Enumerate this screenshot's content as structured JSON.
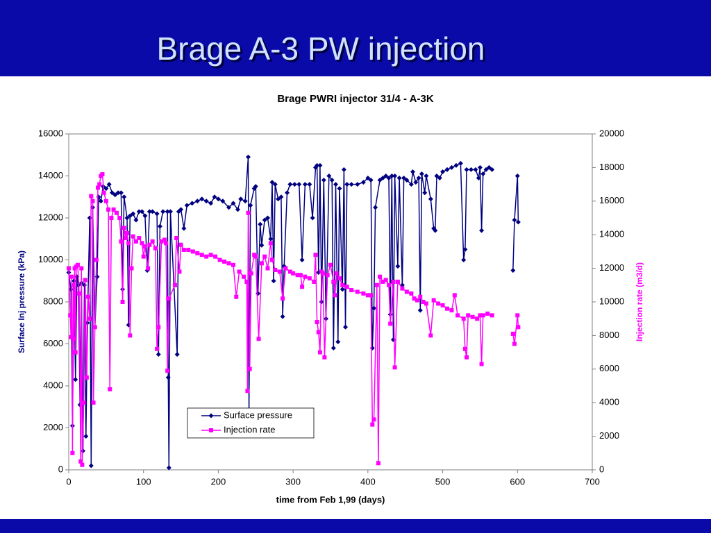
{
  "slide": {
    "title": "Brage A-3 PW injection"
  },
  "chart_data": {
    "type": "line",
    "title": "Brage PWRI injector 31/4 - A-3K",
    "xlabel": "time from Feb 1,99 (days)",
    "ylabel": "Surface Inj pressure (kPa)",
    "y2label": "Injection rate (m3/d)",
    "xlim": [
      0,
      700
    ],
    "xticks": [
      0,
      100,
      200,
      300,
      400,
      500,
      600,
      700
    ],
    "ylim": [
      0,
      16000
    ],
    "yticks": [
      0,
      2000,
      4000,
      6000,
      8000,
      10000,
      12000,
      14000,
      16000
    ],
    "y2lim": [
      0,
      20000
    ],
    "y2ticks": [
      0,
      2000,
      4000,
      6000,
      8000,
      10000,
      12000,
      14000,
      16000,
      18000,
      20000
    ],
    "grid": false,
    "legend": "bottom-left",
    "series": [
      {
        "name": "Surface pressure",
        "color": "#000080",
        "marker": "diamond",
        "axis": "y",
        "x": [
          0,
          3,
          5,
          7,
          9,
          11,
          13,
          15,
          17,
          19,
          21,
          23,
          25,
          28,
          30,
          32,
          35,
          38,
          40,
          43,
          46,
          50,
          54,
          58,
          62,
          66,
          70,
          72,
          74,
          78,
          80,
          82,
          86,
          90,
          94,
          98,
          102,
          105,
          108,
          112,
          118,
          120,
          122,
          126,
          132,
          133,
          134,
          136,
          145,
          147,
          150,
          154,
          158,
          165,
          172,
          178,
          184,
          190,
          195,
          200,
          206,
          214,
          220,
          226,
          230,
          236,
          240,
          241,
          243,
          248,
          250,
          253,
          256,
          258,
          262,
          266,
          270,
          272,
          274,
          276,
          280,
          284,
          286,
          288,
          292,
          296,
          302,
          308,
          312,
          316,
          322,
          326,
          330,
          332,
          334,
          336,
          338,
          341,
          344,
          348,
          352,
          354,
          357,
          360,
          362,
          366,
          368,
          370,
          372,
          378,
          386,
          394,
          400,
          404,
          406,
          408,
          410,
          416,
          420,
          424,
          428,
          430,
          432,
          434,
          436,
          440,
          442,
          446,
          448,
          452,
          458,
          460,
          464,
          468,
          470,
          472,
          476,
          478,
          484,
          488,
          490,
          492,
          496,
          500,
          506,
          512,
          518,
          524,
          528,
          530,
          532,
          538,
          544,
          548,
          550,
          552,
          554,
          558,
          562,
          566,
          580,
          594,
          596,
          600,
          601
        ],
        "values": [
          9400,
          8600,
          2100,
          9000,
          4300,
          9200,
          8800,
          3100,
          8900,
          900,
          8800,
          1600,
          7000,
          12000,
          200,
          12500,
          6800,
          9200,
          13000,
          12800,
          13500,
          13400,
          13600,
          13200,
          13100,
          13200,
          13200,
          8600,
          13000,
          12000,
          6900,
          12100,
          12200,
          11900,
          12300,
          12300,
          12100,
          9500,
          12300,
          12300,
          12200,
          5500,
          11600,
          12300,
          12300,
          4400,
          100,
          12300,
          5500,
          12300,
          12400,
          11500,
          12600,
          12700,
          12800,
          12900,
          12800,
          12700,
          13000,
          12900,
          12800,
          12500,
          12700,
          12400,
          12900,
          12800,
          14900,
          2800,
          12600,
          13400,
          13500,
          8400,
          11700,
          10700,
          11900,
          12000,
          11000,
          13700,
          9000,
          13600,
          12900,
          13000,
          7300,
          9700,
          13200,
          13600,
          13600,
          13600,
          10000,
          13600,
          13600,
          12000,
          14400,
          14500,
          9400,
          14500,
          8000,
          13800,
          7200,
          14000,
          13800,
          5800,
          13600,
          6100,
          13400,
          8600,
          14300,
          6800,
          13600,
          13600,
          13600,
          13700,
          13900,
          13800,
          5800,
          7700,
          12500,
          13800,
          13900,
          14000,
          13900,
          7400,
          14000,
          6200,
          14000,
          9700,
          13900,
          8800,
          13900,
          13800,
          13600,
          14200,
          13700,
          13900,
          7600,
          14100,
          13200,
          14000,
          12900,
          11500,
          11400,
          14000,
          13900,
          14200,
          14300,
          14400,
          14500,
          14600,
          10000,
          10500,
          14300,
          14300,
          14300,
          13900,
          14400,
          11400,
          14100,
          14300,
          14400,
          14300,
          null,
          9500,
          11900,
          14000,
          11800
        ]
      },
      {
        "name": "Injection rate",
        "color": "#ff00ff",
        "marker": "square",
        "axis": "y2",
        "x": [
          0,
          2,
          3,
          4,
          5,
          6,
          7,
          8,
          9,
          10,
          12,
          14,
          16,
          17,
          18,
          20,
          22,
          24,
          26,
          28,
          30,
          32,
          33,
          35,
          37,
          39,
          41,
          43,
          45,
          47,
          50,
          53,
          55,
          57,
          60,
          64,
          68,
          70,
          72,
          74,
          76,
          78,
          80,
          82,
          84,
          86,
          90,
          94,
          98,
          100,
          102,
          106,
          108,
          112,
          116,
          118,
          120,
          124,
          128,
          130,
          132,
          134,
          142,
          144,
          148,
          150,
          154,
          160,
          166,
          172,
          178,
          184,
          190,
          196,
          202,
          208,
          214,
          220,
          224,
          228,
          234,
          238,
          239,
          240,
          242,
          244,
          248,
          250,
          254,
          258,
          262,
          266,
          270,
          272,
          276,
          282,
          286,
          290,
          296,
          300,
          306,
          310,
          312,
          316,
          322,
          328,
          330,
          332,
          334,
          336,
          338,
          340,
          342,
          346,
          350,
          354,
          356,
          358,
          362,
          366,
          372,
          378,
          386,
          394,
          400,
          404,
          406,
          408,
          412,
          414,
          416,
          420,
          424,
          428,
          430,
          434,
          436,
          440,
          446,
          452,
          458,
          462,
          466,
          470,
          474,
          478,
          484,
          488,
          494,
          500,
          506,
          512,
          516,
          520,
          528,
          530,
          532,
          534,
          540,
          546,
          550,
          552,
          554,
          560,
          566,
          580,
          594,
          596,
          600,
          601
        ],
        "values": [
          12000,
          9200,
          7900,
          11500,
          1000,
          11000,
          7800,
          12000,
          7000,
          12100,
          12200,
          10500,
          500,
          12000,
          300,
          4000,
          11300,
          5500,
          10300,
          9000,
          16300,
          16000,
          4000,
          8500,
          12500,
          16800,
          17000,
          17500,
          17600,
          16500,
          16000,
          15500,
          4800,
          15000,
          15500,
          15300,
          15000,
          13600,
          10000,
          14400,
          13800,
          14100,
          13500,
          8000,
          12000,
          13900,
          13600,
          13800,
          13500,
          12700,
          13300,
          12000,
          13400,
          13600,
          13200,
          7200,
          8500,
          13600,
          13700,
          13500,
          5900,
          10200,
          11000,
          13800,
          11800,
          13400,
          13100,
          13100,
          13000,
          12900,
          12800,
          12700,
          12800,
          12700,
          12500,
          12400,
          12300,
          12200,
          10300,
          11800,
          11500,
          11200,
          4700,
          15300,
          6000,
          11700,
          12800,
          12700,
          7800,
          12300,
          12700,
          12000,
          13500,
          12500,
          11900,
          11800,
          10200,
          12000,
          11800,
          11700,
          11600,
          11600,
          10900,
          11500,
          11400,
          11200,
          12800,
          8800,
          8200,
          7000,
          11800,
          11700,
          6700,
          11600,
          12200,
          11200,
          10400,
          11700,
          11400,
          11000,
          10900,
          10700,
          10600,
          10500,
          10400,
          10400,
          2700,
          3000,
          11000,
          400,
          11500,
          11200,
          11300,
          11000,
          8700,
          11200,
          6100,
          11200,
          10800,
          10600,
          10500,
          10200,
          10100,
          10300,
          10000,
          9900,
          8000,
          10100,
          9900,
          9800,
          9600,
          9500,
          10400,
          9200,
          9000,
          7200,
          6700,
          9200,
          9100,
          9000,
          9200,
          6300,
          9200,
          9300,
          9200,
          null,
          8100,
          7500,
          9200,
          8500
        ]
      }
    ]
  }
}
